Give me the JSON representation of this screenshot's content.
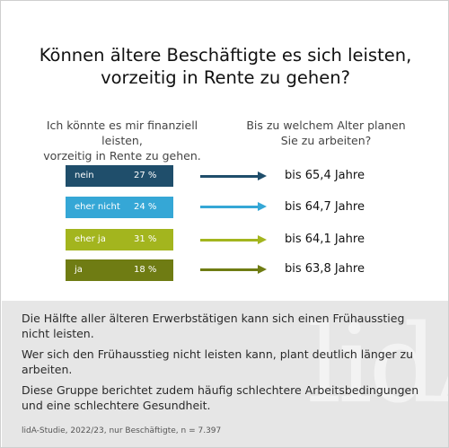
{
  "title": "Können ältere Beschäftigte es sich leisten,\nvorzeitig in Rente zu gehen?",
  "columns": {
    "left_header": "Ich könnte es mir finanziell leisten,\nvorzeitig in Rente zu gehen.",
    "right_header": "Bis zu welchem Alter planen\nSie zu arbeiten?"
  },
  "chart_data": {
    "type": "table",
    "rows": [
      {
        "label": "nein",
        "percent_label": "27 %",
        "percent": 27,
        "planned_age_label": "bis 65,4 Jahre",
        "planned_age": 65.4,
        "color": "#1f4e6b"
      },
      {
        "label": "eher nicht",
        "percent_label": "24 %",
        "percent": 24,
        "planned_age_label": "bis 64,7 Jahre",
        "planned_age": 64.7,
        "color": "#35a7d6"
      },
      {
        "label": "eher ja",
        "percent_label": "31 %",
        "percent": 31,
        "planned_age_label": "bis 64,1 Jahre",
        "planned_age": 64.1,
        "color": "#a3b51e"
      },
      {
        "label": "ja",
        "percent_label": "18 %",
        "percent": 18,
        "planned_age_label": "bis 63,8 Jahre",
        "planned_age": 63.8,
        "color": "#6f7c13"
      }
    ]
  },
  "findings": [
    "Die Hälfte aller älteren Erwerbstätigen kann sich einen Frühausstieg nicht leisten.",
    "Wer sich den Frühausstieg nicht leisten kann, plant deutlich länger zu arbeiten.",
    "Diese Gruppe berichtet zudem häufig schlechtere Arbeitsbedingungen und eine schlechtere Gesundheit."
  ],
  "source": "lidA-Studie, 2022/23, nur Beschäftigte, n = 7.397",
  "watermark": "lidA"
}
